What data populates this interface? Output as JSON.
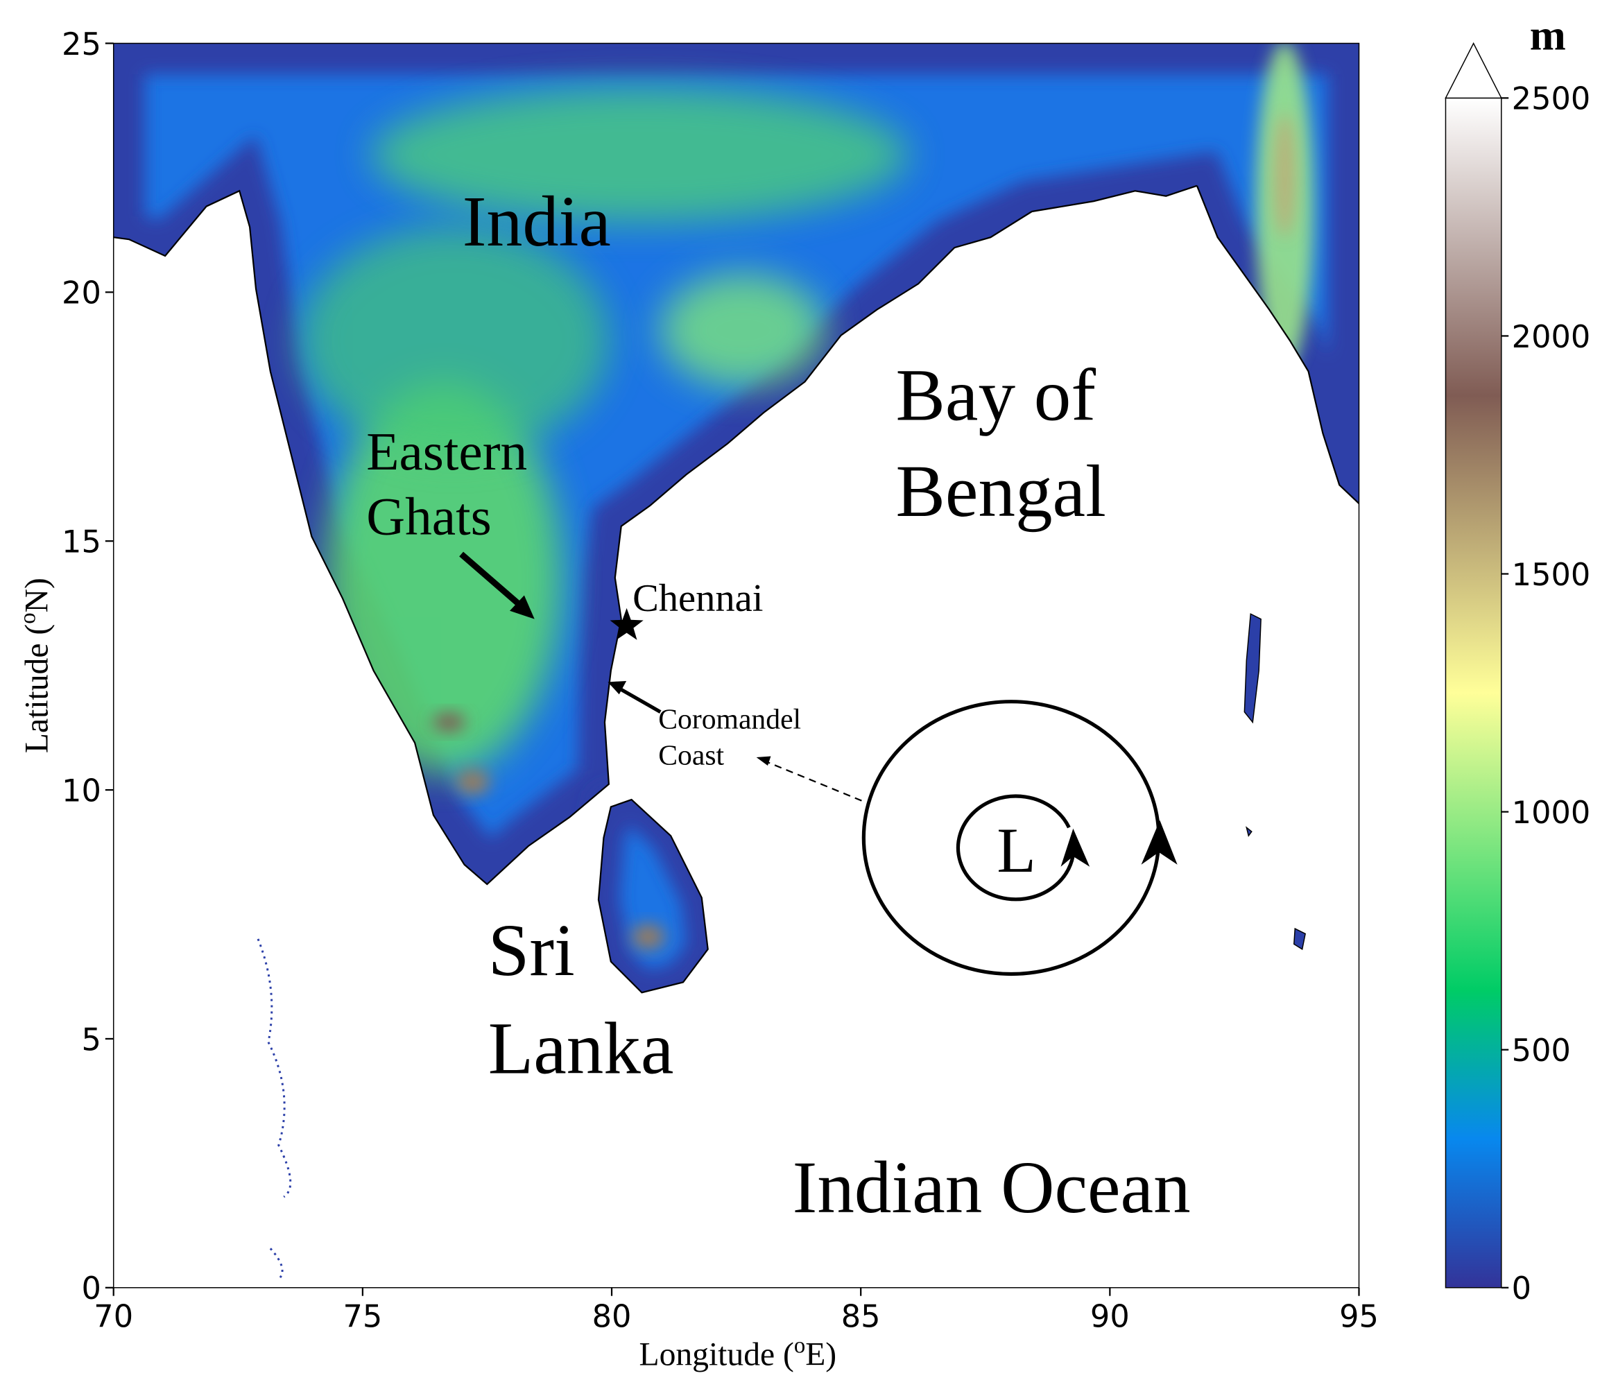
{
  "chart_data": {
    "type": "map",
    "xlabel": [
      "Longitude (",
      "o",
      "E)"
    ],
    "ylabel": [
      "Latitude (",
      "o",
      "N)"
    ],
    "xlim": [
      70,
      95
    ],
    "ylim": [
      0,
      25
    ],
    "xticks": [
      70,
      75,
      80,
      85,
      90,
      95
    ],
    "yticks": [
      0,
      5,
      10,
      15,
      20,
      25
    ],
    "annotations": [
      "India",
      "Bay of",
      "Bengal",
      "Eastern",
      "Ghats",
      "Chennai",
      "Coromandel",
      "Coast",
      "Sri",
      "Lanka",
      "Indian Ocean",
      "L"
    ],
    "chennai": {
      "lon": 80.3,
      "lat": 13.3
    },
    "colorbar": {
      "label": "m",
      "lim": [
        0,
        2500
      ],
      "ticks": [
        0,
        500,
        1000,
        1500,
        2000,
        2500
      ],
      "extend": "max",
      "colors": [
        "#333399",
        "#0888ee",
        "#00cc66",
        "#80e680",
        "#ffff99",
        "#bfad77",
        "#805c54",
        "#bfaeaa",
        "#ffffff"
      ]
    }
  }
}
